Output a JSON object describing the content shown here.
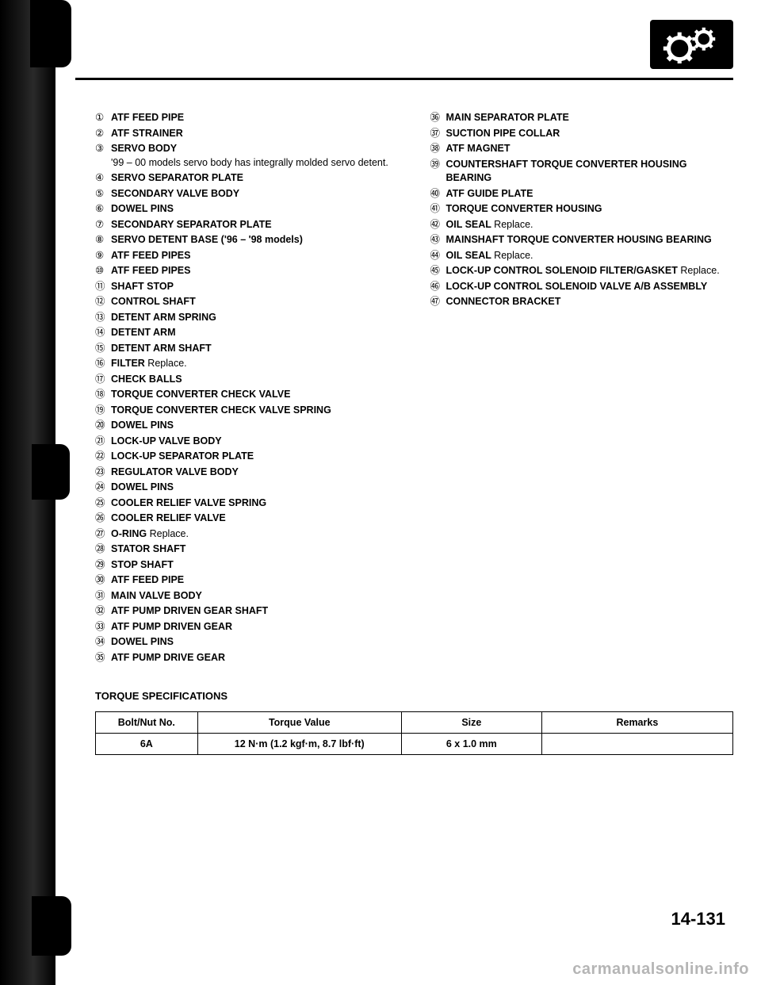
{
  "logo": {
    "bg": "#000000",
    "fg": "#ffffff"
  },
  "left_items": [
    {
      "n": "①",
      "t": "ATF FEED PIPE"
    },
    {
      "n": "②",
      "t": "ATF STRAINER"
    },
    {
      "n": "③",
      "t": "SERVO BODY",
      "note": "'99 – 00 models servo body has integrally molded servo detent."
    },
    {
      "n": "④",
      "t": "SERVO SEPARATOR PLATE"
    },
    {
      "n": "⑤",
      "t": "SECONDARY VALVE BODY"
    },
    {
      "n": "⑥",
      "t": "DOWEL PINS"
    },
    {
      "n": "⑦",
      "t": "SECONDARY SEPARATOR PLATE"
    },
    {
      "n": "⑧",
      "t": "SERVO DETENT BASE ('96 – '98 models)"
    },
    {
      "n": "⑨",
      "t": "ATF FEED PIPES"
    },
    {
      "n": "⑩",
      "t": "ATF FEED PIPES"
    },
    {
      "n": "⑪",
      "t": "SHAFT STOP"
    },
    {
      "n": "⑫",
      "t": "CONTROL SHAFT"
    },
    {
      "n": "⑬",
      "t": "DETENT ARM SPRING"
    },
    {
      "n": "⑭",
      "t": "DETENT ARM"
    },
    {
      "n": "⑮",
      "t": "DETENT ARM SHAFT"
    },
    {
      "n": "⑯",
      "t": "FILTER",
      "note_inline": "Replace."
    },
    {
      "n": "⑰",
      "t": "CHECK BALLS"
    },
    {
      "n": "⑱",
      "t": "TORQUE CONVERTER CHECK VALVE"
    },
    {
      "n": "⑲",
      "t": "TORQUE CONVERTER CHECK VALVE SPRING"
    },
    {
      "n": "⑳",
      "t": "DOWEL PINS"
    },
    {
      "n": "㉑",
      "t": "LOCK-UP VALVE BODY"
    },
    {
      "n": "㉒",
      "t": "LOCK-UP SEPARATOR PLATE"
    },
    {
      "n": "㉓",
      "t": "REGULATOR VALVE BODY"
    },
    {
      "n": "㉔",
      "t": "DOWEL PINS"
    },
    {
      "n": "㉕",
      "t": "COOLER RELIEF VALVE SPRING"
    },
    {
      "n": "㉖",
      "t": "COOLER RELIEF VALVE"
    },
    {
      "n": "㉗",
      "t": "O-RING",
      "note_inline": "Replace."
    },
    {
      "n": "㉘",
      "t": "STATOR SHAFT"
    },
    {
      "n": "㉙",
      "t": "STOP SHAFT"
    },
    {
      "n": "㉚",
      "t": "ATF FEED PIPE"
    },
    {
      "n": "㉛",
      "t": "MAIN VALVE BODY"
    },
    {
      "n": "㉜",
      "t": "ATF PUMP DRIVEN GEAR SHAFT"
    },
    {
      "n": "㉝",
      "t": "ATF PUMP DRIVEN GEAR"
    },
    {
      "n": "㉞",
      "t": "DOWEL PINS"
    },
    {
      "n": "㉟",
      "t": "ATF PUMP DRIVE GEAR"
    }
  ],
  "right_items": [
    {
      "n": "㊱",
      "t": "MAIN SEPARATOR PLATE"
    },
    {
      "n": "㊲",
      "t": "SUCTION PIPE COLLAR"
    },
    {
      "n": "㊳",
      "t": "ATF MAGNET"
    },
    {
      "n": "㊴",
      "t": "COUNTERSHAFT TORQUE CONVERTER HOUSING BEARING"
    },
    {
      "n": "㊵",
      "t": "ATF GUIDE PLATE"
    },
    {
      "n": "㊶",
      "t": "TORQUE CONVERTER HOUSING"
    },
    {
      "n": "㊷",
      "t": "OIL SEAL",
      "note_inline": "Replace."
    },
    {
      "n": "㊸",
      "t": "MAINSHAFT TORQUE CONVERTER HOUSING BEARING"
    },
    {
      "n": "㊹",
      "t": "OIL SEAL",
      "note_inline": "Replace."
    },
    {
      "n": "㊺",
      "t": "LOCK-UP CONTROL SOLENOID FILTER/GASKET",
      "note_inline": "Replace."
    },
    {
      "n": "㊻",
      "t": "LOCK-UP CONTROL SOLENOID VALVE A/B ASSEMBLY"
    },
    {
      "n": "㊼",
      "t": "CONNECTOR BRACKET"
    }
  ],
  "torque_title": "TORQUE SPECIFICATIONS",
  "table": {
    "headers": [
      "Bolt/Nut No.",
      "Torque Value",
      "Size",
      "Remarks"
    ],
    "row": [
      "6A",
      "12 N·m (1.2 kgf·m, 8.7 lbf·ft)",
      "6 x 1.0 mm",
      ""
    ],
    "col_widths": [
      "16%",
      "32%",
      "22%",
      "30%"
    ]
  },
  "page_num": "14-131",
  "watermark": "carmanualsonline.info"
}
